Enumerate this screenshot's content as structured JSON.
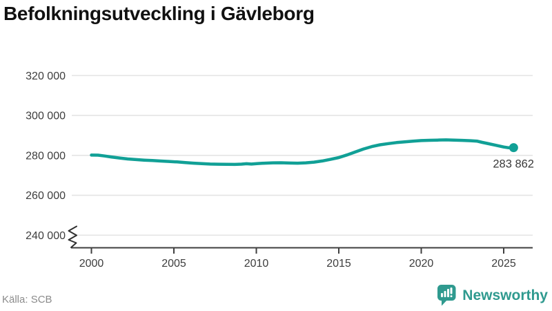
{
  "chart_data": {
    "type": "line",
    "title": "Befolkningsutveckling i Gävleborg",
    "xlabel": "",
    "ylabel": "",
    "grid": true,
    "axis_break": true,
    "xlim": [
      1998.8,
      2026.6
    ],
    "ylim": [
      240000,
      320000
    ],
    "line_color": "#11a096",
    "grid_color": "#e4e4e4",
    "axis_color": "#3f3f3f",
    "tick_label_color": "#3d3d3d",
    "x_ticks": [
      {
        "year": 2000,
        "label": "2000"
      },
      {
        "year": 2005,
        "label": "2005"
      },
      {
        "year": 2010,
        "label": "2010"
      },
      {
        "year": 2015,
        "label": "2015"
      },
      {
        "year": 2020,
        "label": "2020"
      },
      {
        "year": 2025,
        "label": "2025"
      }
    ],
    "y_ticks": [
      {
        "value": 320000,
        "label": "320 000"
      },
      {
        "value": 300000,
        "label": "300 000"
      },
      {
        "value": 280000,
        "label": "280 000"
      },
      {
        "value": 260000,
        "label": "260 000"
      },
      {
        "value": 240000,
        "label": "240 000"
      }
    ],
    "series": [
      {
        "name": "Befolkning i Gävleborg",
        "points": [
          [
            2000.0,
            280150
          ],
          [
            2000.4,
            280100
          ],
          [
            2000.8,
            279700
          ],
          [
            2001.2,
            279200
          ],
          [
            2001.7,
            278700
          ],
          [
            2002.2,
            278200
          ],
          [
            2002.7,
            277900
          ],
          [
            2003.2,
            277600
          ],
          [
            2003.7,
            277400
          ],
          [
            2004.2,
            277150
          ],
          [
            2004.7,
            276950
          ],
          [
            2005.2,
            276700
          ],
          [
            2005.7,
            276400
          ],
          [
            2006.2,
            276100
          ],
          [
            2006.7,
            275850
          ],
          [
            2007.2,
            275650
          ],
          [
            2007.7,
            275550
          ],
          [
            2008.2,
            275500
          ],
          [
            2008.7,
            275450
          ],
          [
            2009.1,
            275600
          ],
          [
            2009.4,
            275800
          ],
          [
            2009.7,
            275650
          ],
          [
            2010.1,
            275900
          ],
          [
            2010.5,
            276100
          ],
          [
            2011.0,
            276250
          ],
          [
            2011.5,
            276300
          ],
          [
            2012.0,
            276150
          ],
          [
            2012.5,
            276100
          ],
          [
            2013.0,
            276250
          ],
          [
            2013.5,
            276600
          ],
          [
            2014.0,
            277200
          ],
          [
            2014.5,
            278000
          ],
          [
            2015.0,
            278900
          ],
          [
            2015.5,
            280200
          ],
          [
            2016.0,
            281700
          ],
          [
            2016.5,
            283200
          ],
          [
            2017.0,
            284400
          ],
          [
            2017.5,
            285300
          ],
          [
            2018.0,
            285900
          ],
          [
            2018.5,
            286400
          ],
          [
            2019.0,
            286800
          ],
          [
            2019.5,
            287100
          ],
          [
            2020.0,
            287400
          ],
          [
            2020.5,
            287550
          ],
          [
            2021.0,
            287650
          ],
          [
            2021.5,
            287750
          ],
          [
            2022.0,
            287650
          ],
          [
            2022.5,
            287500
          ],
          [
            2023.0,
            287350
          ],
          [
            2023.4,
            287100
          ],
          [
            2023.7,
            286500
          ],
          [
            2024.0,
            286000
          ],
          [
            2024.5,
            285100
          ],
          [
            2025.0,
            284200
          ],
          [
            2025.3,
            283800
          ],
          [
            2025.6,
            283862
          ]
        ]
      }
    ],
    "end_annotation": {
      "label": "283 862",
      "value": 283862
    }
  },
  "footer": {
    "source": "Källa: SCB",
    "brand": "Newsworthy",
    "brand_color": "#2f9a8f"
  }
}
